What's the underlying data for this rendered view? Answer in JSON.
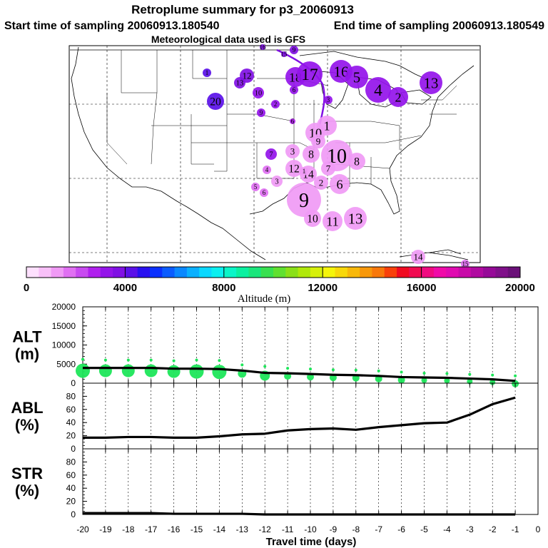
{
  "header": {
    "title": "Retroplume summary for p3_20060913",
    "start_label": "Start time of sampling 20060913.180540",
    "end_label": "End time of sampling 20060913.180549",
    "met_label": "Meteorological data used is GFS"
  },
  "colorbar": {
    "label": "Altitude (m)",
    "ticks": [
      "0",
      "4000",
      "8000",
      "12000",
      "16000",
      "20000"
    ],
    "colors": [
      "#fde0fd",
      "#f8c0f8",
      "#f09af5",
      "#e070f2",
      "#c84af0",
      "#b020ee",
      "#9414ea",
      "#8010e4",
      "#5a10e8",
      "#2810f0",
      "#0a30ff",
      "#0a5cff",
      "#0a88ff",
      "#0ab0ff",
      "#0ad8ff",
      "#0af0f0",
      "#0af5c8",
      "#0af0a0",
      "#1ae67c",
      "#38e050",
      "#60e030",
      "#8ae018",
      "#b0e80a",
      "#d6f00a",
      "#f5f50a",
      "#f8d80a",
      "#f8b80a",
      "#f8980a",
      "#f8780a",
      "#f8400a",
      "#f00a20",
      "#f00a50",
      "#f00a80",
      "#f00aa8",
      "#e00ab0",
      "#c80aa8",
      "#b00aa0",
      "#960a98",
      "#80108a",
      "#6a1078"
    ]
  },
  "map": {
    "markers": [
      {
        "n": "16",
        "size": 4,
        "alt": 3800
      },
      {
        "n": "15",
        "size": 4,
        "alt": 3800
      },
      {
        "n": "9",
        "size": 6,
        "alt": 3800
      },
      {
        "n": "18",
        "size": 14,
        "alt": 3200
      },
      {
        "n": "17",
        "size": 18,
        "alt": 3200
      },
      {
        "n": "16",
        "size": 16,
        "alt": 3200
      },
      {
        "n": "5",
        "size": 16,
        "alt": 3200
      },
      {
        "n": "4",
        "size": 18,
        "alt": 3200
      },
      {
        "n": "2",
        "size": 14,
        "alt": 3200
      },
      {
        "n": "13",
        "size": 16,
        "alt": 3200
      },
      {
        "n": "1",
        "size": 6,
        "alt": 4400
      },
      {
        "n": "12",
        "size": 10,
        "alt": 3600
      },
      {
        "n": "13",
        "size": 8,
        "alt": 3600
      },
      {
        "n": "10",
        "size": 8,
        "alt": 3400
      },
      {
        "n": "6",
        "size": 6,
        "alt": 3000
      },
      {
        "n": "20",
        "size": 12,
        "alt": 4200
      },
      {
        "n": "2",
        "size": 6,
        "alt": 3400
      },
      {
        "n": "9",
        "size": 6,
        "alt": 3000
      },
      {
        "n": "3",
        "size": 6,
        "alt": 3000
      },
      {
        "n": "6",
        "size": 4,
        "alt": 2800
      },
      {
        "n": "1",
        "size": 14,
        "alt": 1200
      },
      {
        "n": "10",
        "size": 14,
        "alt": 1200
      },
      {
        "n": "9",
        "size": 10,
        "alt": 1200
      },
      {
        "n": "7",
        "size": 8,
        "alt": 3000
      },
      {
        "n": "3",
        "size": 10,
        "alt": 1200
      },
      {
        "n": "8",
        "size": 12,
        "alt": 1200
      },
      {
        "n": "10",
        "size": 22,
        "alt": 1000
      },
      {
        "n": "8",
        "size": 12,
        "alt": 1000
      },
      {
        "n": "4",
        "size": 6,
        "alt": 1600
      },
      {
        "n": "12",
        "size": 12,
        "alt": 1000
      },
      {
        "n": "14",
        "size": 12,
        "alt": 1000
      },
      {
        "n": "3",
        "size": 8,
        "alt": 1400
      },
      {
        "n": "2",
        "size": 10,
        "alt": 1000
      },
      {
        "n": "6",
        "size": 14,
        "alt": 1000
      },
      {
        "n": "5",
        "size": 6,
        "alt": 1600
      },
      {
        "n": "6",
        "size": 6,
        "alt": 1600
      },
      {
        "n": "9",
        "size": 24,
        "alt": 1000
      },
      {
        "n": "10",
        "size": 12,
        "alt": 1000
      },
      {
        "n": "11",
        "size": 14,
        "alt": 1000
      },
      {
        "n": "13",
        "size": 16,
        "alt": 1200
      },
      {
        "n": "14",
        "size": 10,
        "alt": 1200
      },
      {
        "n": "15",
        "size": 6,
        "alt": 1600
      },
      {
        "n": "1",
        "size": 6,
        "alt": 1400
      },
      {
        "n": "7",
        "size": 10,
        "alt": 1400
      }
    ]
  },
  "chart_data": [
    {
      "type": "line",
      "panel": "ALT",
      "ylabel_line1": "ALT",
      "ylabel_line2": "(m)",
      "ylim": [
        0,
        20000
      ],
      "yticks": [
        "20000",
        "15000",
        "10000",
        "5000",
        "0"
      ],
      "x": [
        -20,
        -19,
        -18,
        -17,
        -16,
        -15,
        -14,
        -13,
        -12,
        -11,
        -10,
        -9,
        -8,
        -7,
        -6,
        -5,
        -4,
        -3,
        -2,
        -1
      ],
      "values": [
        4000,
        4000,
        4000,
        4000,
        3800,
        3800,
        3700,
        3300,
        2700,
        2600,
        2400,
        2200,
        2100,
        1900,
        1600,
        1500,
        1400,
        1200,
        1000,
        600
      ],
      "dot_sizes": [
        10,
        9,
        9,
        9,
        9,
        10,
        10,
        6,
        7,
        5,
        5,
        5,
        5,
        5,
        5,
        4,
        4,
        4,
        4,
        5
      ],
      "dot_color": "#1ee65a"
    },
    {
      "type": "line",
      "panel": "ABL",
      "ylabel_line1": "ABL",
      "ylabel_line2": "(%)",
      "ylim": [
        0,
        100
      ],
      "yticks": [
        "80",
        "60",
        "40",
        "20",
        "0"
      ],
      "x": [
        -20,
        -19,
        -18,
        -17,
        -16,
        -15,
        -14,
        -13,
        -12,
        -11,
        -10,
        -9,
        -8,
        -7,
        -6,
        -5,
        -4,
        -3,
        -2,
        -1
      ],
      "values": [
        17,
        17,
        18,
        18,
        17,
        17,
        19,
        22,
        23,
        28,
        30,
        31,
        29,
        33,
        36,
        39,
        40,
        52,
        68,
        78
      ]
    },
    {
      "type": "line",
      "panel": "STR",
      "ylabel_line1": "STR",
      "ylabel_line2": "(%)",
      "ylim": [
        0,
        100
      ],
      "yticks": [
        "80",
        "60",
        "40",
        "20",
        "0"
      ],
      "xlabel": "Travel time (days)",
      "xticks": [
        "-20",
        "-19",
        "-18",
        "-17",
        "-16",
        "-15",
        "-14",
        "-13",
        "-12",
        "-11",
        "-10",
        "-9",
        "-8",
        "-7",
        "-6",
        "-5",
        "-4",
        "-3",
        "-2",
        "-1",
        "0"
      ],
      "x": [
        -20,
        -19,
        -18,
        -17,
        -16,
        -15,
        -14,
        -13,
        -12,
        -11,
        -10,
        -9,
        -8,
        -7,
        -6,
        -5,
        -4,
        -3,
        -2,
        -1
      ],
      "values": [
        2,
        2,
        2,
        2,
        1,
        1,
        1,
        1,
        0,
        0,
        0,
        0,
        0,
        0,
        0,
        0,
        0,
        0,
        0,
        0
      ]
    }
  ]
}
